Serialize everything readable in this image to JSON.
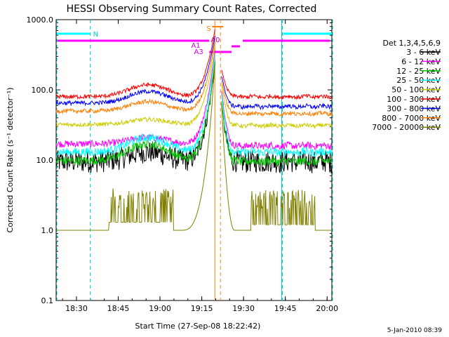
{
  "chart_data": {
    "type": "line",
    "title": "HESSI Observing Summary Count Rates, Corrected",
    "ylabel": "Corrected Count Rate (s⁻¹ detector⁻¹)",
    "xlabel": "Start Time (27-Sep-08 18:22:42)",
    "y_scale": "log",
    "ylim": [
      0.1,
      1000
    ],
    "xlim_minutes": [
      0,
      99
    ],
    "yticks": [
      {
        "value": 1000,
        "label": "1000.0"
      },
      {
        "value": 100,
        "label": "100.0"
      },
      {
        "value": 10,
        "label": "10.0"
      },
      {
        "value": 1,
        "label": "1.0"
      },
      {
        "value": 0.1,
        "label": "0.1"
      }
    ],
    "xticks": [
      {
        "minute": 7.3,
        "label": "18:30"
      },
      {
        "minute": 22.3,
        "label": "18:45"
      },
      {
        "minute": 37.3,
        "label": "19:00"
      },
      {
        "minute": 52.3,
        "label": "19:15"
      },
      {
        "minute": 67.3,
        "label": "19:30"
      },
      {
        "minute": 82.3,
        "label": "19:45"
      },
      {
        "minute": 97.3,
        "label": "20:00"
      }
    ],
    "legend_title": "Det 1,3,4,5,6,9",
    "series": [
      {
        "name": "3 - 6 keV",
        "color": "#000000",
        "base": 9.5,
        "bump": 13,
        "peak": 280,
        "post": 9.5,
        "noise": 0.16
      },
      {
        "name": "6 - 12 keV",
        "color": "#ff00ff",
        "base": 17,
        "bump": 21,
        "peak": 420,
        "post": 16,
        "noise": 0.05
      },
      {
        "name": "12 - 25 keV",
        "color": "#00cc00",
        "base": 9.8,
        "bump": 17,
        "peak": 300,
        "post": 9.6,
        "noise": 0.06
      },
      {
        "name": "25 - 50 keV",
        "color": "#00ffff",
        "base": 13,
        "bump": 21,
        "peak": 380,
        "post": 13,
        "noise": 0.06
      },
      {
        "name": "50 - 100 keV",
        "color": "#cccc00",
        "base": 32,
        "bump": 38,
        "peak": 500,
        "post": 31,
        "noise": 0.03
      },
      {
        "name": "100 - 300 keV",
        "color": "#ff0000",
        "base": 80,
        "bump": 118,
        "peak": 800,
        "post": 80,
        "noise": 0.03
      },
      {
        "name": "300 - 800 keV",
        "color": "#0000ff",
        "base": 65,
        "bump": 95,
        "peak": 650,
        "post": 58,
        "noise": 0.03
      },
      {
        "name": "800 - 7000 keV",
        "color": "#ff7f00",
        "base": 50,
        "bump": 68,
        "peak": 560,
        "post": 46,
        "noise": 0.03
      },
      {
        "name": "7000 - 20000 keV",
        "color": "#808000",
        "base": 1,
        "bump": 3,
        "peak": 300,
        "post": 1,
        "noise": 0
      }
    ],
    "annotations": {
      "night_intervals_minutes": [
        [
          0,
          12
        ],
        [
          81,
          99
        ]
      ],
      "night_label": "N",
      "saa_dashed_lines_minutes": [
        0,
        12,
        81,
        99
      ],
      "saa_solid_lines_minutes": [
        81
      ],
      "flare_label": "S",
      "attenuator_labels": [
        "A1",
        "A0",
        "A3"
      ],
      "orange_solid_line_minute": 57,
      "orange_dashed_line_minute": 59
    }
  },
  "footer": {
    "timestamp": "5-Jan-2010 08:39"
  }
}
